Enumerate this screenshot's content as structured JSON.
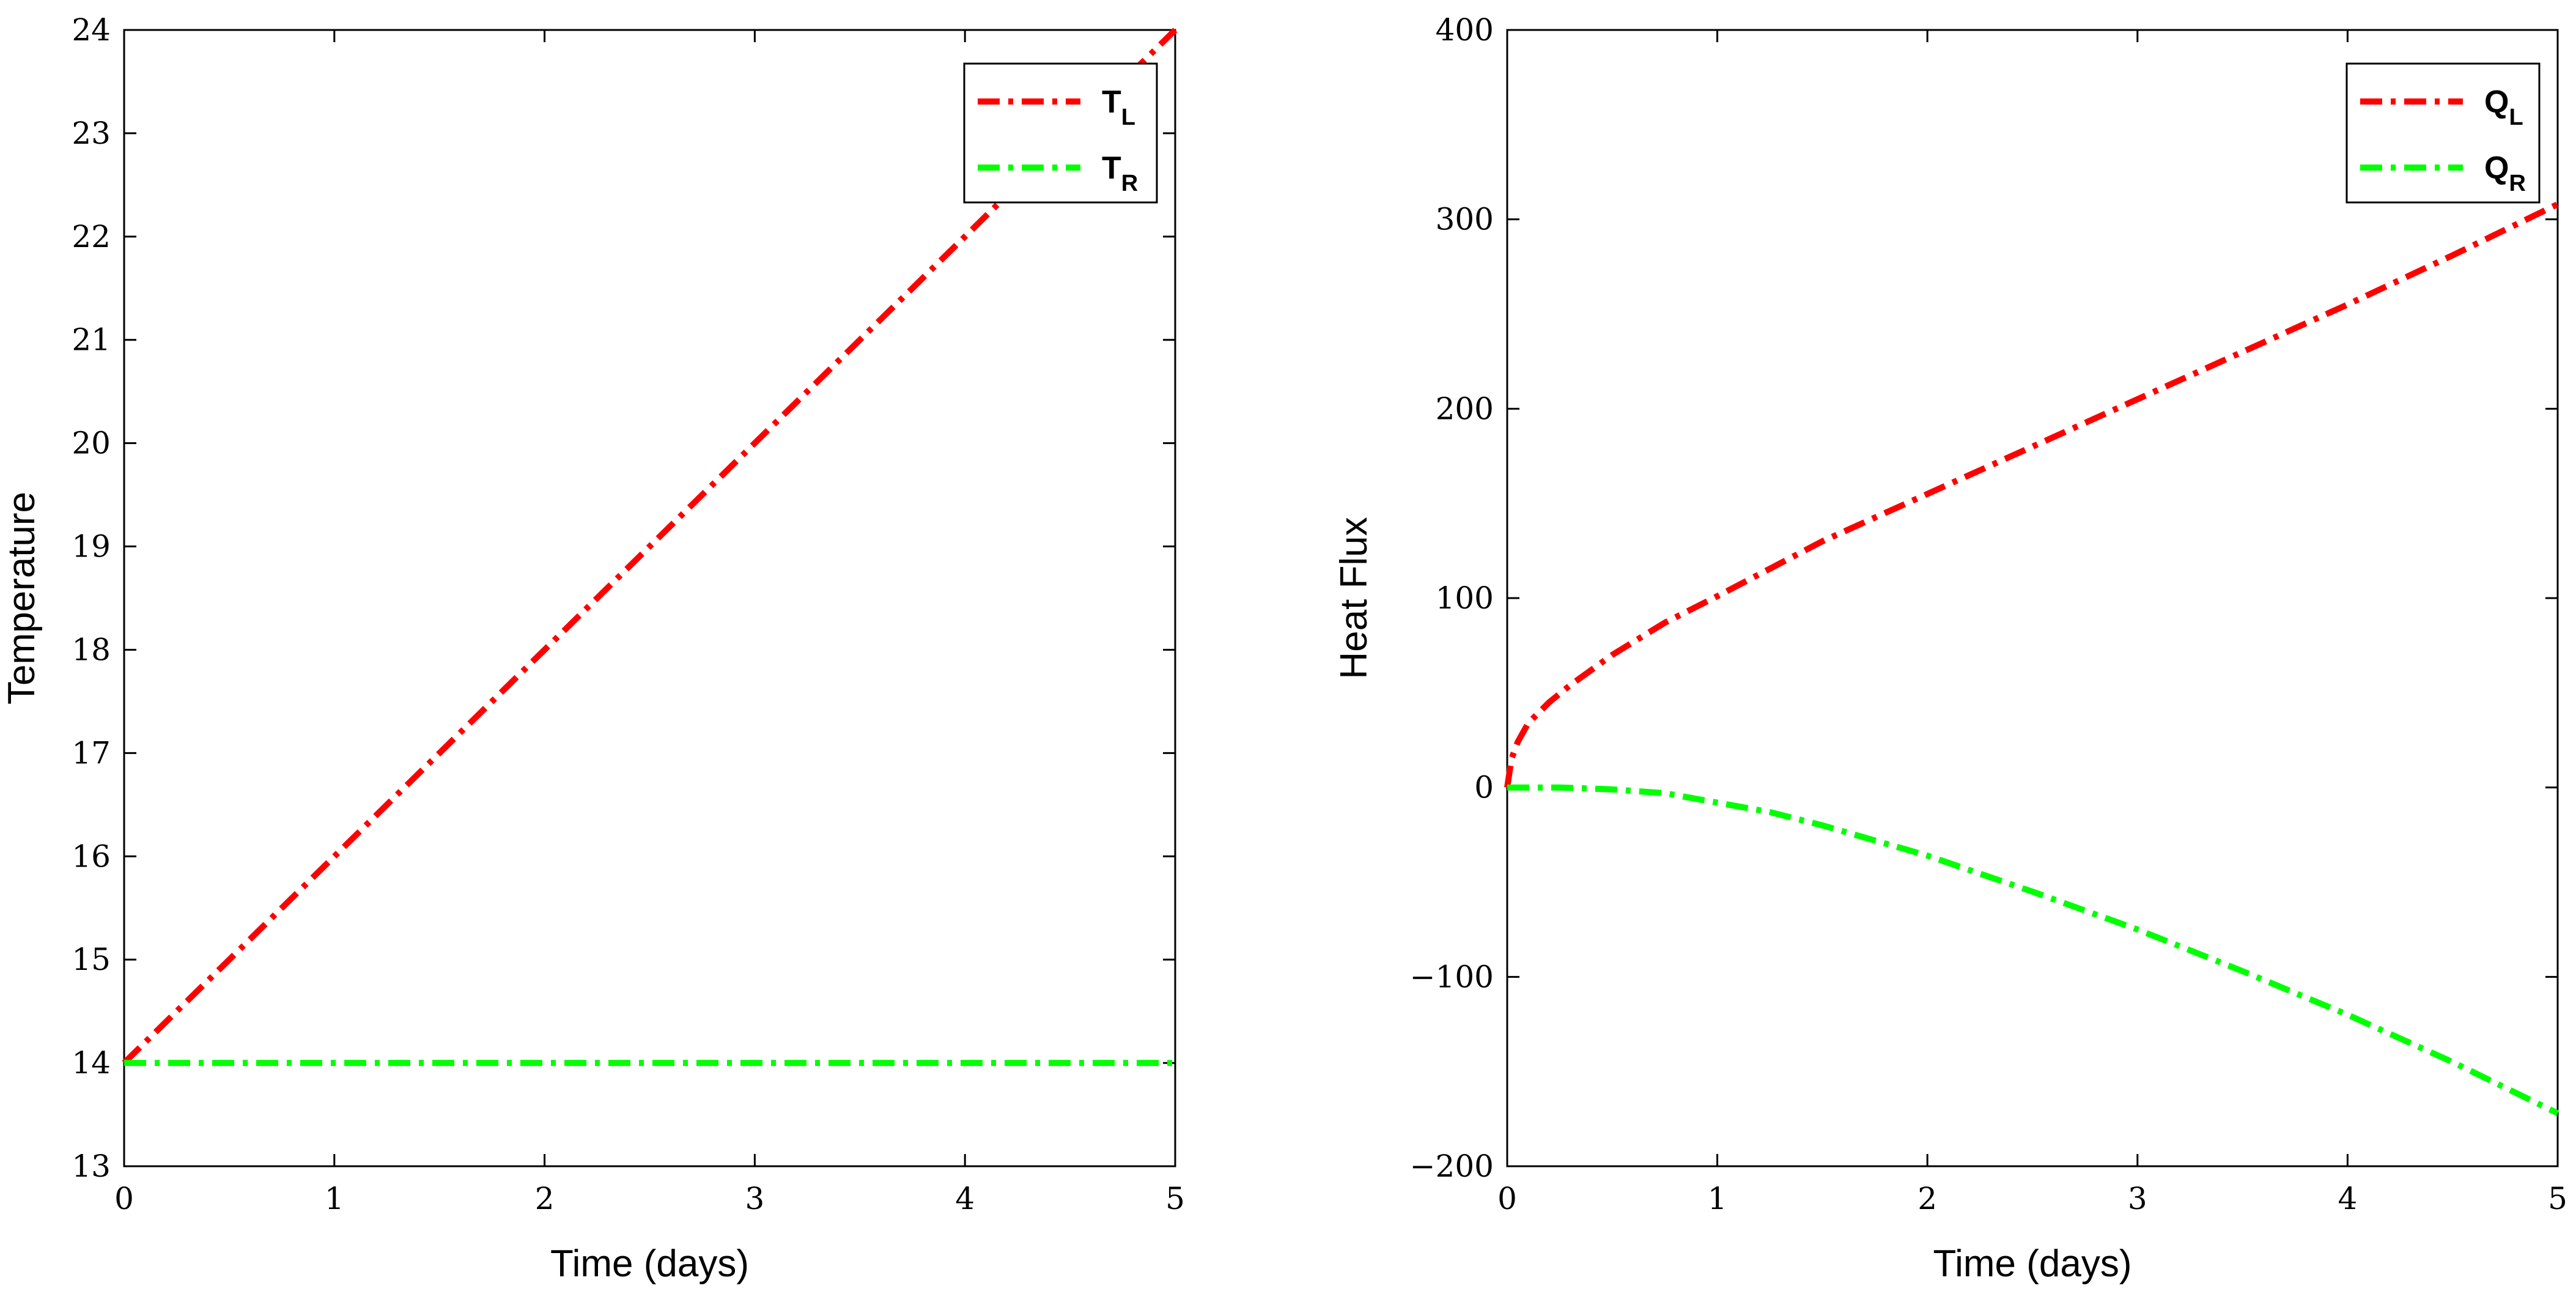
{
  "chart_data": [
    {
      "type": "line",
      "xlabel": "Time (days)",
      "ylabel": "Temperature",
      "xlim": [
        0,
        5
      ],
      "ylim": [
        13,
        24
      ],
      "xticks": [
        "0",
        "1",
        "2",
        "3",
        "4",
        "5"
      ],
      "yticks": [
        "13",
        "14",
        "15",
        "16",
        "17",
        "18",
        "19",
        "20",
        "21",
        "22",
        "23",
        "24"
      ],
      "grid": false,
      "legend_position": "top-right",
      "series": [
        {
          "name": "T",
          "subscript": "L",
          "color": "#ff0000",
          "style": "dash-dot",
          "x": [
            0,
            0.5,
            1,
            1.5,
            2,
            2.5,
            3,
            3.5,
            4,
            4.5,
            5
          ],
          "y": [
            14,
            15,
            16,
            17,
            18,
            19,
            20,
            21,
            22,
            23,
            24
          ]
        },
        {
          "name": "T",
          "subscript": "R",
          "color": "#00ff00",
          "style": "dash-dot",
          "x": [
            0,
            0.5,
            1,
            1.5,
            2,
            2.5,
            3,
            3.5,
            4,
            4.5,
            5
          ],
          "y": [
            14,
            14,
            14,
            14,
            14,
            14,
            14,
            14,
            14,
            14,
            14
          ]
        }
      ]
    },
    {
      "type": "line",
      "xlabel": "Time (days)",
      "ylabel": "Heat Flux",
      "xlim": [
        0,
        5
      ],
      "ylim": [
        -200,
        400
      ],
      "xticks": [
        "0",
        "1",
        "2",
        "3",
        "4",
        "5"
      ],
      "yticks": [
        "−200",
        "−100",
        "0",
        "100",
        "200",
        "300",
        "400"
      ],
      "grid": false,
      "legend_position": "top-right",
      "series": [
        {
          "name": "Q",
          "subscript": "L",
          "color": "#ff0000",
          "style": "dash-dot",
          "x": [
            0,
            0.02,
            0.05,
            0.1,
            0.2,
            0.3,
            0.5,
            0.75,
            1,
            1.5,
            2,
            2.5,
            3,
            3.5,
            4,
            4.5,
            5
          ],
          "y": [
            0,
            15,
            24,
            34,
            45,
            54,
            70,
            87,
            101,
            130,
            155,
            180,
            205,
            230,
            255,
            281,
            308
          ]
        },
        {
          "name": "Q",
          "subscript": "R",
          "color": "#00ff00",
          "style": "dash-dot",
          "x": [
            0,
            0.25,
            0.5,
            0.75,
            1,
            1.25,
            1.5,
            2,
            2.5,
            3,
            3.5,
            4,
            4.5,
            5
          ],
          "y": [
            0,
            0,
            -1,
            -3,
            -8,
            -13,
            -20,
            -36,
            -55,
            -75,
            -97,
            -120,
            -145,
            -172
          ]
        }
      ]
    }
  ]
}
